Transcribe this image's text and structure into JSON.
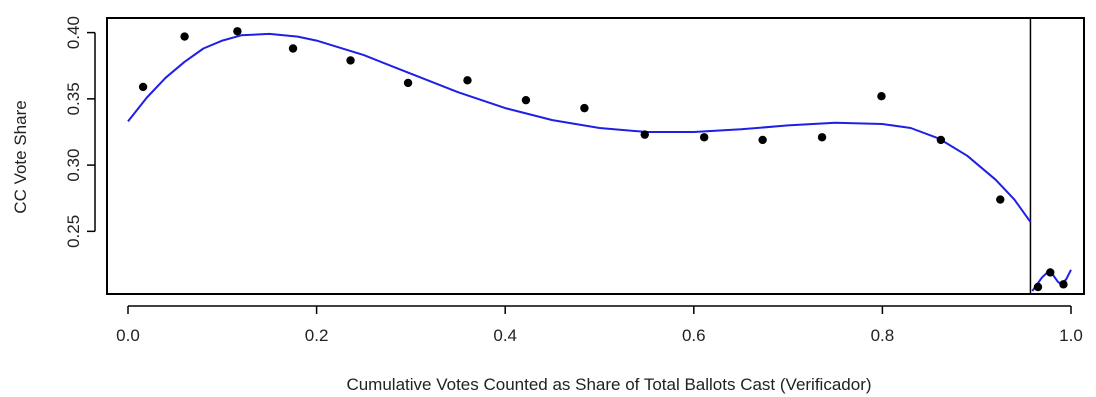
{
  "chart_data": {
    "type": "scatter",
    "xlabel": "Cumulative Votes Counted as Share of Total Ballots Cast (Verificador)",
    "ylabel": "CC Vote Share",
    "xlim": [
      0.0,
      1.0
    ],
    "ylim": [
      0.2,
      0.4
    ],
    "xticks": [
      "0.0",
      "0.2",
      "0.4",
      "0.6",
      "0.8",
      "1.0"
    ],
    "yticks": [
      "0.25",
      "0.30",
      "0.35",
      "0.40"
    ],
    "cutoff_x": 0.957,
    "colors": {
      "points": "#000000",
      "fit": "#1f1fe6",
      "axis": "#000000"
    },
    "points": [
      {
        "x": 0.016,
        "y": 0.359
      },
      {
        "x": 0.06,
        "y": 0.397
      },
      {
        "x": 0.116,
        "y": 0.401
      },
      {
        "x": 0.175,
        "y": 0.388
      },
      {
        "x": 0.236,
        "y": 0.379
      },
      {
        "x": 0.297,
        "y": 0.362
      },
      {
        "x": 0.36,
        "y": 0.364
      },
      {
        "x": 0.422,
        "y": 0.349
      },
      {
        "x": 0.484,
        "y": 0.343
      },
      {
        "x": 0.548,
        "y": 0.323
      },
      {
        "x": 0.611,
        "y": 0.321
      },
      {
        "x": 0.673,
        "y": 0.319
      },
      {
        "x": 0.736,
        "y": 0.321
      },
      {
        "x": 0.799,
        "y": 0.352
      },
      {
        "x": 0.862,
        "y": 0.319
      },
      {
        "x": 0.925,
        "y": 0.274
      },
      {
        "x": 0.965,
        "y": 0.208
      },
      {
        "x": 0.978,
        "y": 0.219
      },
      {
        "x": 0.992,
        "y": 0.21
      }
    ],
    "fit_left": [
      {
        "x": 0.0,
        "y": 0.333
      },
      {
        "x": 0.02,
        "y": 0.351
      },
      {
        "x": 0.04,
        "y": 0.366
      },
      {
        "x": 0.06,
        "y": 0.378
      },
      {
        "x": 0.08,
        "y": 0.388
      },
      {
        "x": 0.1,
        "y": 0.394
      },
      {
        "x": 0.12,
        "y": 0.398
      },
      {
        "x": 0.15,
        "y": 0.399
      },
      {
        "x": 0.18,
        "y": 0.397
      },
      {
        "x": 0.2,
        "y": 0.394
      },
      {
        "x": 0.25,
        "y": 0.383
      },
      {
        "x": 0.3,
        "y": 0.369
      },
      {
        "x": 0.35,
        "y": 0.355
      },
      {
        "x": 0.4,
        "y": 0.343
      },
      {
        "x": 0.45,
        "y": 0.334
      },
      {
        "x": 0.5,
        "y": 0.328
      },
      {
        "x": 0.55,
        "y": 0.325
      },
      {
        "x": 0.6,
        "y": 0.325
      },
      {
        "x": 0.65,
        "y": 0.327
      },
      {
        "x": 0.7,
        "y": 0.33
      },
      {
        "x": 0.75,
        "y": 0.332
      },
      {
        "x": 0.8,
        "y": 0.331
      },
      {
        "x": 0.83,
        "y": 0.328
      },
      {
        "x": 0.86,
        "y": 0.32
      },
      {
        "x": 0.89,
        "y": 0.307
      },
      {
        "x": 0.92,
        "y": 0.289
      },
      {
        "x": 0.94,
        "y": 0.274
      },
      {
        "x": 0.957,
        "y": 0.257
      }
    ],
    "fit_right": [
      {
        "x": 0.959,
        "y": 0.205
      },
      {
        "x": 0.964,
        "y": 0.21
      },
      {
        "x": 0.969,
        "y": 0.215
      },
      {
        "x": 0.975,
        "y": 0.219
      },
      {
        "x": 0.981,
        "y": 0.217
      },
      {
        "x": 0.986,
        "y": 0.212
      },
      {
        "x": 0.99,
        "y": 0.21
      },
      {
        "x": 0.995,
        "y": 0.214
      },
      {
        "x": 1.0,
        "y": 0.221
      }
    ]
  }
}
